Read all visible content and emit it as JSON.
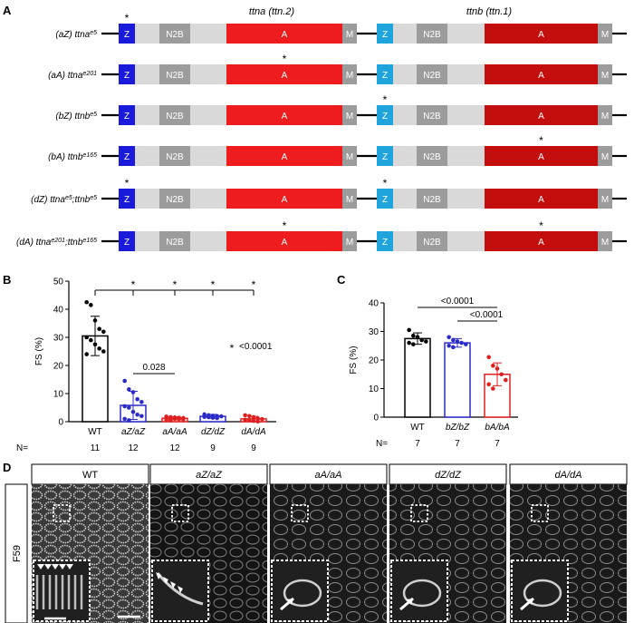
{
  "panels": {
    "A": "A",
    "B": "B",
    "C": "C",
    "D": "D"
  },
  "gene_headers": {
    "ttna": "ttna (ttn.2)",
    "ttnb": "ttnb (ttn.1)"
  },
  "domain_labels": {
    "Z": "Z",
    "N2B": "N2B",
    "A": "A",
    "M": "M"
  },
  "colors": {
    "z_ttna": "#1a1adb",
    "z_ttnb": "#1fa5dc",
    "n2b": "#9c9c9c",
    "bar": "#d9d9d9",
    "a_ttna": "#ee1c1c",
    "a_ttnb": "#c40d0d",
    "m": "#9c9c9c",
    "wt": "#000000",
    "aZ": "#2b2bc8",
    "aA": "#e02020",
    "dZ": "#2b2bc8",
    "dA": "#e02020",
    "bZ": "#2b2bc8",
    "bA": "#e02020"
  },
  "constructs": [
    {
      "prefix": "(aZ) ",
      "gene": "ttna",
      "allele": "e5",
      "gene2": "",
      "allele2": "",
      "star": [
        "ttna_Z"
      ]
    },
    {
      "prefix": "(aA) ",
      "gene": "ttna",
      "allele": "e201",
      "gene2": "",
      "allele2": "",
      "star": [
        "ttna_A"
      ]
    },
    {
      "prefix": "(bZ) ",
      "gene": "ttnb",
      "allele": "e5",
      "gene2": "",
      "allele2": "",
      "star": [
        "ttnb_Z"
      ]
    },
    {
      "prefix": "(bA) ",
      "gene": "ttnb",
      "allele": "e165",
      "gene2": "",
      "allele2": "",
      "star": [
        "ttnb_A"
      ]
    },
    {
      "prefix": "(dZ) ",
      "gene": "ttna",
      "allele": "e5",
      "gene2": ";ttnb",
      "allele2": "e5",
      "star": [
        "ttna_Z",
        "ttnb_Z"
      ]
    },
    {
      "prefix": "(dA) ",
      "gene": "ttna",
      "allele": "e201",
      "gene2": ";ttnb",
      "allele2": "e165",
      "star": [
        "ttna_A",
        "ttnb_A"
      ]
    }
  ],
  "chart_data": [
    {
      "type": "bar",
      "panel": "B",
      "ylabel": "FS (%)",
      "ylim": [
        0,
        50
      ],
      "yticks": [
        0,
        10,
        20,
        30,
        40,
        50
      ],
      "categories": [
        "WT",
        "aZ/aZ",
        "aA/aA",
        "dZ/dZ",
        "dA/dA"
      ],
      "values": [
        30.5,
        5.8,
        1.2,
        1.9,
        1.0
      ],
      "sd": [
        7.0,
        5.0,
        0.5,
        0.7,
        0.9
      ],
      "points": [
        [
          42.5,
          41.5,
          36,
          33,
          32,
          30,
          29,
          27.5,
          26,
          25,
          24
        ],
        [
          14.5,
          11.5,
          10.5,
          8,
          7,
          5.5,
          5,
          3.5,
          2.5,
          2,
          1,
          0.5
        ],
        [
          1.8,
          1.6,
          1.5,
          1.4,
          1.3,
          1.2,
          1.1,
          1.0,
          0.9,
          0.8,
          0.6,
          0.5
        ],
        [
          2.6,
          2.3,
          2.1,
          2.0,
          1.9,
          1.7,
          1.6,
          1.4,
          1.3
        ],
        [
          2.3,
          2.0,
          1.6,
          1.2,
          0.9,
          0.7,
          0.5,
          0.3,
          0.1
        ]
      ],
      "n_label": "N=",
      "n": [
        "11",
        "12",
        "12",
        "9",
        "9"
      ],
      "annotations": {
        "p_ab": "0.028",
        "legend_star": "*",
        "legend_text": "<0.0001",
        "star": "*"
      }
    },
    {
      "type": "bar",
      "panel": "C",
      "ylabel": "FS (%)",
      "ylim": [
        0,
        40
      ],
      "yticks": [
        0,
        10,
        20,
        30,
        40
      ],
      "categories": [
        "WT",
        "bZ/bZ",
        "bA/bA"
      ],
      "values": [
        27.5,
        26.0,
        15.0
      ],
      "sd": [
        2.0,
        1.5,
        4.0
      ],
      "points": [
        [
          30.5,
          28.5,
          28,
          27,
          26.5,
          26,
          25.5
        ],
        [
          28,
          27,
          26.5,
          26,
          25.5,
          25,
          24.5
        ],
        [
          21,
          18,
          17,
          15,
          13,
          11.5,
          10
        ]
      ],
      "n_label": "N=",
      "n": [
        "7",
        "7",
        "7"
      ],
      "annotations": {
        "p_top": "<0.0001",
        "p_mid": "<0.0001"
      }
    }
  ],
  "micrographs": {
    "row_label": "F59",
    "columns": [
      "WT",
      "aZ/aZ",
      "aA/aA",
      "dZ/dZ",
      "dA/dA"
    ]
  }
}
